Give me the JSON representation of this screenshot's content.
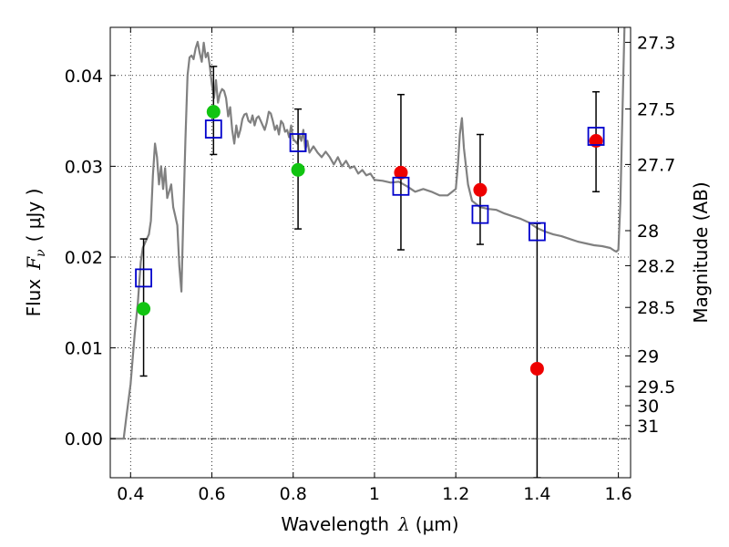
{
  "chart_data": {
    "type": "scatter",
    "title": "",
    "xlabel": "Wavelength",
    "xlabel_symbol": "λ",
    "xlabel_unit": "(μm)",
    "ylabel": "Flux",
    "ylabel_symbol": "F",
    "ylabel_subscript": "ν",
    "ylabel_unit": "( μJy )",
    "y2label": "Magnitude (AB)",
    "xlim": [
      0.35,
      1.63
    ],
    "ylim": [
      -0.0043,
      0.0453
    ],
    "grid": true,
    "grid_style": "dotted",
    "x_ticks": [
      {
        "value": 0.4,
        "label": "0.4"
      },
      {
        "value": 0.6,
        "label": "0.6"
      },
      {
        "value": 0.8,
        "label": "0.8"
      },
      {
        "value": 1.0,
        "label": "1"
      },
      {
        "value": 1.2,
        "label": "1.2"
      },
      {
        "value": 1.4,
        "label": "1.4"
      },
      {
        "value": 1.6,
        "label": "1.6"
      }
    ],
    "y_ticks": [
      {
        "value": 0.0,
        "label": "0.00"
      },
      {
        "value": 0.01,
        "label": "0.01"
      },
      {
        "value": 0.02,
        "label": "0.02"
      },
      {
        "value": 0.03,
        "label": "0.03"
      },
      {
        "value": 0.04,
        "label": "0.04"
      }
    ],
    "y2_ticks": [
      {
        "value": 27.3,
        "label": "27.3"
      },
      {
        "value": 27.5,
        "label": "27.5"
      },
      {
        "value": 27.7,
        "label": "27.7"
      },
      {
        "value": 28.0,
        "label": "28"
      },
      {
        "value": 28.2,
        "label": "28.2"
      },
      {
        "value": 28.5,
        "label": "28.5"
      },
      {
        "value": 29.0,
        "label": "29"
      },
      {
        "value": 29.5,
        "label": "29.5"
      },
      {
        "value": 30.0,
        "label": "30"
      },
      {
        "value": 31.0,
        "label": "31"
      }
    ],
    "colors": {
      "model": "#808080",
      "green": "#11c411",
      "red": "#ee0000",
      "blue": "#0000cc",
      "errorbar": "#000000"
    },
    "model_spectrum": [
      [
        0.35,
        0.0
      ],
      [
        0.383,
        0.0
      ],
      [
        0.39,
        0.0025
      ],
      [
        0.4,
        0.006
      ],
      [
        0.41,
        0.0115
      ],
      [
        0.418,
        0.015
      ],
      [
        0.425,
        0.0195
      ],
      [
        0.43,
        0.021
      ],
      [
        0.44,
        0.022
      ],
      [
        0.445,
        0.0225
      ],
      [
        0.45,
        0.024
      ],
      [
        0.455,
        0.029
      ],
      [
        0.46,
        0.0325
      ],
      [
        0.465,
        0.031
      ],
      [
        0.47,
        0.028
      ],
      [
        0.475,
        0.03
      ],
      [
        0.48,
        0.0275
      ],
      [
        0.485,
        0.0298
      ],
      [
        0.49,
        0.0265
      ],
      [
        0.5,
        0.028
      ],
      [
        0.505,
        0.0255
      ],
      [
        0.51,
        0.0245
      ],
      [
        0.515,
        0.0235
      ],
      [
        0.52,
        0.019
      ],
      [
        0.525,
        0.0162
      ],
      [
        0.53,
        0.025
      ],
      [
        0.535,
        0.033
      ],
      [
        0.54,
        0.04
      ],
      [
        0.545,
        0.042
      ],
      [
        0.55,
        0.0422
      ],
      [
        0.555,
        0.0418
      ],
      [
        0.56,
        0.043
      ],
      [
        0.565,
        0.0437
      ],
      [
        0.57,
        0.0425
      ],
      [
        0.575,
        0.0415
      ],
      [
        0.58,
        0.0436
      ],
      [
        0.585,
        0.042
      ],
      [
        0.59,
        0.0425
      ],
      [
        0.595,
        0.041
      ],
      [
        0.6,
        0.039
      ],
      [
        0.605,
        0.0375
      ],
      [
        0.61,
        0.0395
      ],
      [
        0.615,
        0.037
      ],
      [
        0.62,
        0.038
      ],
      [
        0.625,
        0.0385
      ],
      [
        0.63,
        0.0383
      ],
      [
        0.635,
        0.0375
      ],
      [
        0.64,
        0.0355
      ],
      [
        0.645,
        0.0365
      ],
      [
        0.65,
        0.034
      ],
      [
        0.655,
        0.0325
      ],
      [
        0.66,
        0.0345
      ],
      [
        0.665,
        0.0332
      ],
      [
        0.67,
        0.034
      ],
      [
        0.675,
        0.0352
      ],
      [
        0.68,
        0.0357
      ],
      [
        0.685,
        0.0358
      ],
      [
        0.69,
        0.035
      ],
      [
        0.695,
        0.0348
      ],
      [
        0.7,
        0.0356
      ],
      [
        0.705,
        0.0345
      ],
      [
        0.71,
        0.0353
      ],
      [
        0.715,
        0.0355
      ],
      [
        0.72,
        0.035
      ],
      [
        0.725,
        0.0345
      ],
      [
        0.73,
        0.034
      ],
      [
        0.735,
        0.0348
      ],
      [
        0.74,
        0.036
      ],
      [
        0.745,
        0.0358
      ],
      [
        0.75,
        0.035
      ],
      [
        0.755,
        0.034
      ],
      [
        0.76,
        0.0345
      ],
      [
        0.765,
        0.0335
      ],
      [
        0.77,
        0.035
      ],
      [
        0.775,
        0.0347
      ],
      [
        0.78,
        0.0338
      ],
      [
        0.785,
        0.034
      ],
      [
        0.79,
        0.0332
      ],
      [
        0.795,
        0.0345
      ],
      [
        0.8,
        0.033
      ],
      [
        0.81,
        0.0325
      ],
      [
        0.815,
        0.0335
      ],
      [
        0.82,
        0.0328
      ],
      [
        0.825,
        0.034
      ],
      [
        0.83,
        0.0318
      ],
      [
        0.835,
        0.0328
      ],
      [
        0.84,
        0.0315
      ],
      [
        0.85,
        0.0322
      ],
      [
        0.86,
        0.0315
      ],
      [
        0.87,
        0.031
      ],
      [
        0.88,
        0.0316
      ],
      [
        0.89,
        0.031
      ],
      [
        0.9,
        0.0302
      ],
      [
        0.91,
        0.031
      ],
      [
        0.92,
        0.03
      ],
      [
        0.93,
        0.0306
      ],
      [
        0.94,
        0.0298
      ],
      [
        0.95,
        0.03
      ],
      [
        0.96,
        0.0292
      ],
      [
        0.97,
        0.0296
      ],
      [
        0.98,
        0.029
      ],
      [
        0.99,
        0.0292
      ],
      [
        1.0,
        0.0285
      ],
      [
        1.02,
        0.0284
      ],
      [
        1.04,
        0.0282
      ],
      [
        1.06,
        0.0283
      ],
      [
        1.08,
        0.0278
      ],
      [
        1.1,
        0.0272
      ],
      [
        1.12,
        0.0275
      ],
      [
        1.14,
        0.0272
      ],
      [
        1.16,
        0.0268
      ],
      [
        1.18,
        0.0268
      ],
      [
        1.2,
        0.0275
      ],
      [
        1.205,
        0.03
      ],
      [
        1.21,
        0.0335
      ],
      [
        1.215,
        0.0353
      ],
      [
        1.22,
        0.032
      ],
      [
        1.23,
        0.028
      ],
      [
        1.24,
        0.0262
      ],
      [
        1.26,
        0.0255
      ],
      [
        1.28,
        0.0253
      ],
      [
        1.3,
        0.0252
      ],
      [
        1.32,
        0.0248
      ],
      [
        1.34,
        0.0245
      ],
      [
        1.36,
        0.0242
      ],
      [
        1.38,
        0.0238
      ],
      [
        1.4,
        0.0232
      ],
      [
        1.42,
        0.0228
      ],
      [
        1.44,
        0.0225
      ],
      [
        1.46,
        0.0223
      ],
      [
        1.48,
        0.022
      ],
      [
        1.5,
        0.0217
      ],
      [
        1.52,
        0.0215
      ],
      [
        1.54,
        0.0213
      ],
      [
        1.56,
        0.0212
      ],
      [
        1.58,
        0.021
      ],
      [
        1.59,
        0.0207
      ],
      [
        1.595,
        0.0206
      ],
      [
        1.6,
        0.0208
      ],
      [
        1.605,
        0.026
      ],
      [
        1.61,
        0.036
      ],
      [
        1.615,
        0.0453
      ]
    ],
    "green_points": [
      {
        "x": 0.432,
        "y": 0.0143
      },
      {
        "x": 0.604,
        "y": 0.036
      },
      {
        "x": 0.812,
        "y": 0.0296
      }
    ],
    "red_points": [
      {
        "x": 1.065,
        "y": 0.0293
      },
      {
        "x": 1.26,
        "y": 0.0274
      },
      {
        "x": 1.4,
        "y": 0.0077
      },
      {
        "x": 1.545,
        "y": 0.0328
      }
    ],
    "blue_squares": [
      {
        "x": 0.432,
        "y": 0.0177
      },
      {
        "x": 0.604,
        "y": 0.0341
      },
      {
        "x": 0.812,
        "y": 0.0326
      },
      {
        "x": 1.065,
        "y": 0.0278
      },
      {
        "x": 1.26,
        "y": 0.0247
      },
      {
        "x": 1.4,
        "y": 0.0228
      },
      {
        "x": 1.545,
        "y": 0.0333
      }
    ],
    "error_bars": [
      {
        "x": 0.432,
        "low": 0.0069,
        "high": 0.022
      },
      {
        "x": 0.604,
        "low": 0.0313,
        "high": 0.041
      },
      {
        "x": 0.812,
        "low": 0.0231,
        "high": 0.0363
      },
      {
        "x": 1.065,
        "low": 0.0208,
        "high": 0.0379
      },
      {
        "x": 1.26,
        "low": 0.0214,
        "high": 0.0335
      },
      {
        "x": 1.4,
        "low": -0.0043,
        "high": 0.0237
      },
      {
        "x": 1.545,
        "low": 0.0272,
        "high": 0.0382
      }
    ]
  }
}
